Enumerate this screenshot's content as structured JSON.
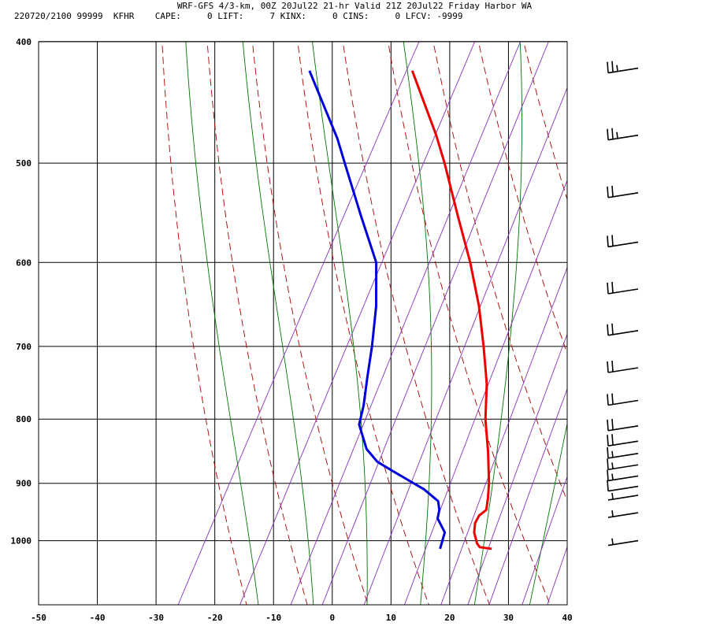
{
  "header": {
    "title": "WRF-GFS 4/3-km, 00Z 20Jul22 21-hr Valid 21Z 20Jul22 Friday Harbor WA",
    "subtitle": "220720/2100 99999  KFHR    CAPE:     0 LIFT:     7 KINX:     0 CINS:     0 LFCV: -9999"
  },
  "chart_data": {
    "type": "line",
    "subtype": "skew-T log-P sounding",
    "title": "WRF-GFS 4/3-km, 00Z 20Jul22 21-hr Valid 21Z 20Jul22 Friday Harbor WA",
    "x_ticks": [
      "-50",
      "-40",
      "-30",
      "-20",
      "-10",
      "0",
      "10",
      "20",
      "30",
      "40"
    ],
    "y_ticks": [
      "400",
      "500",
      "600",
      "700",
      "800",
      "900",
      "1000"
    ],
    "xlim": [
      -50,
      40
    ],
    "ylim": [
      1040,
      400
    ],
    "y_scale": "log",
    "grid": true,
    "colors": {
      "temperature": "#ee0000",
      "dewpoint": "#0000dd",
      "dry_adiabat": "#aa0000",
      "moist_adiabat": "#007700",
      "mixing_ratio": "#8833bb",
      "grid": "#000000",
      "wind_barb": "#000000"
    },
    "series": [
      {
        "values": [
          {
            "p": 1015,
            "t": 22.0
          },
          {
            "p": 1012,
            "t": 19.8
          },
          {
            "p": 1005,
            "t": 19.0
          },
          {
            "p": 985,
            "t": 17.5
          },
          {
            "p": 968,
            "t": 16.8
          },
          {
            "p": 955,
            "t": 16.8
          },
          {
            "p": 945,
            "t": 17.5
          },
          {
            "p": 925,
            "t": 16.7
          },
          {
            "p": 900,
            "t": 15.5
          },
          {
            "p": 850,
            "t": 12.5
          },
          {
            "p": 800,
            "t": 9.0
          },
          {
            "p": 750,
            "t": 6.0
          },
          {
            "p": 700,
            "t": 2.0
          },
          {
            "p": 650,
            "t": -2.5
          },
          {
            "p": 600,
            "t": -8.0
          },
          {
            "p": 550,
            "t": -14.5
          },
          {
            "p": 500,
            "t": -21.5
          },
          {
            "p": 475,
            "t": -25.5
          },
          {
            "p": 422,
            "t": -35.5
          }
        ]
      },
      {
        "values": [
          {
            "p": 1015,
            "t": 13.2
          },
          {
            "p": 985,
            "t": 12.5
          },
          {
            "p": 960,
            "t": 10.0
          },
          {
            "p": 945,
            "t": 9.5
          },
          {
            "p": 930,
            "t": 8.5
          },
          {
            "p": 910,
            "t": 5.0
          },
          {
            "p": 880,
            "t": -2.0
          },
          {
            "p": 865,
            "t": -5.5
          },
          {
            "p": 845,
            "t": -8.5
          },
          {
            "p": 808,
            "t": -12.0
          },
          {
            "p": 780,
            "t": -13.0
          },
          {
            "p": 740,
            "t": -15.0
          },
          {
            "p": 700,
            "t": -17.0
          },
          {
            "p": 650,
            "t": -20.0
          },
          {
            "p": 600,
            "t": -24.0
          },
          {
            "p": 550,
            "t": -31.0
          },
          {
            "p": 500,
            "t": -38.5
          },
          {
            "p": 478,
            "t": -42.0
          },
          {
            "p": 422,
            "t": -53.0
          }
        ]
      }
    ],
    "wind_barbs": [
      {
        "p": 420,
        "speed_kt": 25
      },
      {
        "p": 475,
        "speed_kt": 25
      },
      {
        "p": 528,
        "speed_kt": 20
      },
      {
        "p": 578,
        "speed_kt": 20
      },
      {
        "p": 630,
        "speed_kt": 20
      },
      {
        "p": 680,
        "speed_kt": 20
      },
      {
        "p": 728,
        "speed_kt": 20
      },
      {
        "p": 773,
        "speed_kt": 20
      },
      {
        "p": 810,
        "speed_kt": 20
      },
      {
        "p": 833,
        "speed_kt": 20
      },
      {
        "p": 852,
        "speed_kt": 15
      },
      {
        "p": 870,
        "speed_kt": 15
      },
      {
        "p": 888,
        "speed_kt": 15
      },
      {
        "p": 905,
        "speed_kt": 10
      },
      {
        "p": 920,
        "speed_kt": 5
      },
      {
        "p": 950,
        "speed_kt": 5
      },
      {
        "p": 1000,
        "speed_kt": 5
      }
    ]
  }
}
